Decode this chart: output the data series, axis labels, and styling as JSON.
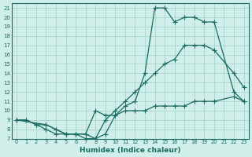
{
  "bg_color": "#d0eeea",
  "grid_color": "#b0d8d2",
  "line_color": "#1a6b60",
  "xlabel": "Humidex (Indice chaleur)",
  "xlim": [
    -0.5,
    23.5
  ],
  "ylim": [
    7,
    21.5
  ],
  "yticks": [
    7,
    8,
    9,
    10,
    11,
    12,
    13,
    14,
    15,
    16,
    17,
    18,
    19,
    20,
    21
  ],
  "xticks": [
    0,
    1,
    2,
    3,
    4,
    5,
    6,
    7,
    8,
    9,
    10,
    11,
    12,
    13,
    14,
    15,
    16,
    17,
    18,
    19,
    20,
    21,
    22,
    23
  ],
  "line1_x": [
    0,
    1,
    2,
    3,
    4,
    5,
    6,
    7,
    8,
    9,
    10,
    11,
    12,
    13,
    14,
    15,
    16,
    17,
    18,
    19,
    20,
    22,
    23
  ],
  "line1_y": [
    9,
    9,
    8.5,
    8,
    7.5,
    7.5,
    7.5,
    7,
    7,
    7.5,
    9.5,
    10.5,
    11,
    14,
    21,
    21,
    19.5,
    20,
    20,
    19.5,
    19.5,
    12,
    11
  ],
  "line2_x": [
    0,
    3,
    4,
    5,
    6,
    7,
    8,
    9,
    10,
    11,
    12,
    13,
    14,
    15,
    16,
    17,
    18,
    19,
    20,
    22,
    23
  ],
  "line2_y": [
    9,
    8.5,
    8,
    7.5,
    7.5,
    7.5,
    7,
    9,
    10,
    11,
    12,
    13,
    14,
    15,
    15.5,
    17,
    17,
    17,
    16.5,
    14,
    12.5
  ],
  "line3_x": [
    0,
    1,
    2,
    3,
    4,
    5,
    6,
    7,
    8,
    9,
    10,
    11,
    12,
    13,
    14,
    15,
    16,
    17,
    18,
    19,
    20,
    22,
    23
  ],
  "line3_y": [
    9,
    9,
    8.5,
    8.5,
    8,
    7.5,
    7.5,
    7.5,
    10,
    9.5,
    9.5,
    10,
    10,
    10,
    10.5,
    10.5,
    10.5,
    10.5,
    11,
    11,
    11,
    11.5,
    11
  ]
}
